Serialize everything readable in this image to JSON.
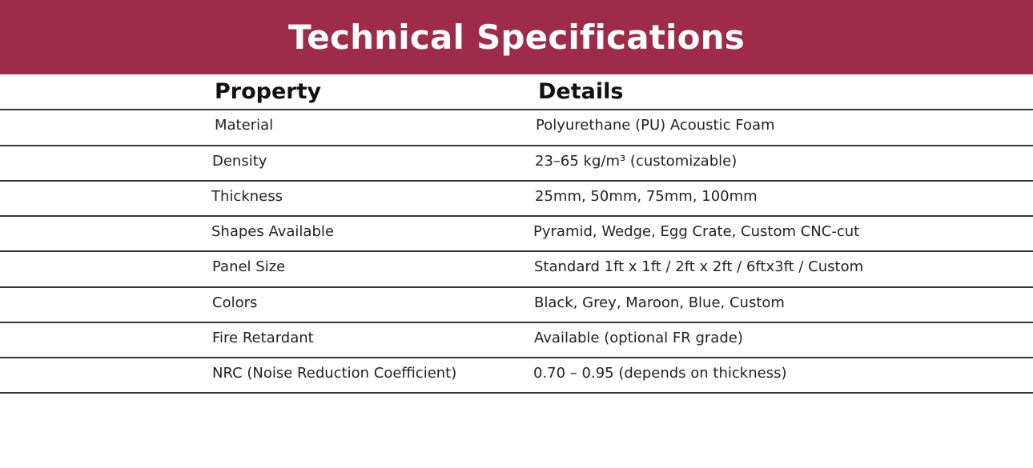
{
  "title": "Technical Specifications",
  "colors": {
    "banner": "#9d2b49"
  },
  "table": {
    "headers": [
      "Property",
      "Details"
    ],
    "rows": [
      [
        "Material",
        "Polyurethane (PU) Acoustic Foam"
      ],
      [
        "Density",
        "23–65 kg/m³ (customizable)"
      ],
      [
        "Thickness",
        "25mm, 50mm, 75mm, 100mm"
      ],
      [
        "Shapes Available",
        "Pyramid, Wedge, Egg Crate, Custom CNC-cut"
      ],
      [
        "Panel Size",
        "Standard 1ft x 1ft / 2ft x 2ft / 6ftx3ft / Custom"
      ],
      [
        "Colors",
        "Black, Grey, Maroon, Blue, Custom"
      ],
      [
        "Fire Retardant",
        "Available (optional FR grade)"
      ],
      [
        "NRC (Noise Reduction Coefficient)",
        "0.70 – 0.95 (depends on thickness)"
      ]
    ]
  }
}
